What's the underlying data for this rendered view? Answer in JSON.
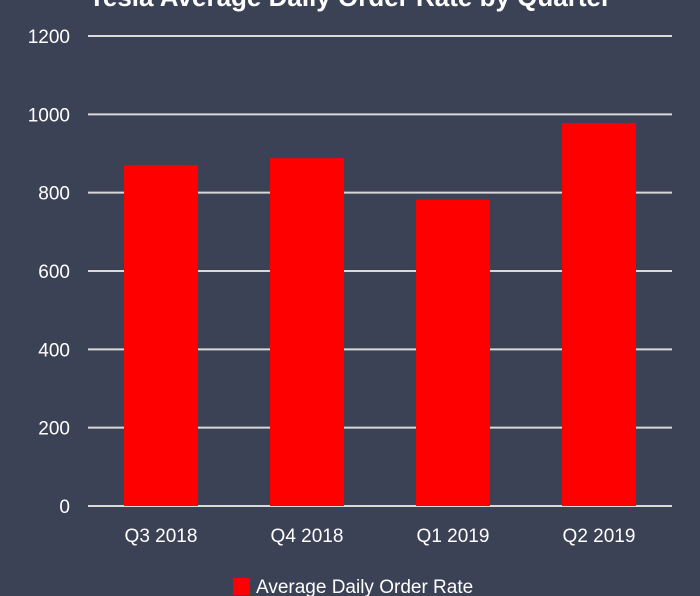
{
  "chart_data": {
    "type": "bar",
    "title": "Tesla Average Daily Order Rate by Quarter",
    "xlabel": "",
    "ylabel": "",
    "categories": [
      "Q3 2018",
      "Q4 2018",
      "Q1 2019",
      "Q2 2019"
    ],
    "series": [
      {
        "name": "Average Daily Order Rate",
        "values": [
          870,
          888,
          782,
          978
        ]
      }
    ],
    "ylim": [
      0,
      1200
    ],
    "yticks": [
      0,
      200,
      400,
      600,
      800,
      1000,
      1200
    ],
    "grid": true,
    "legend": "bottom",
    "colors": {
      "bar": "#ff0000",
      "background": "#3b4255",
      "grid": "#d9d9d9",
      "text": "#ffffff"
    }
  }
}
